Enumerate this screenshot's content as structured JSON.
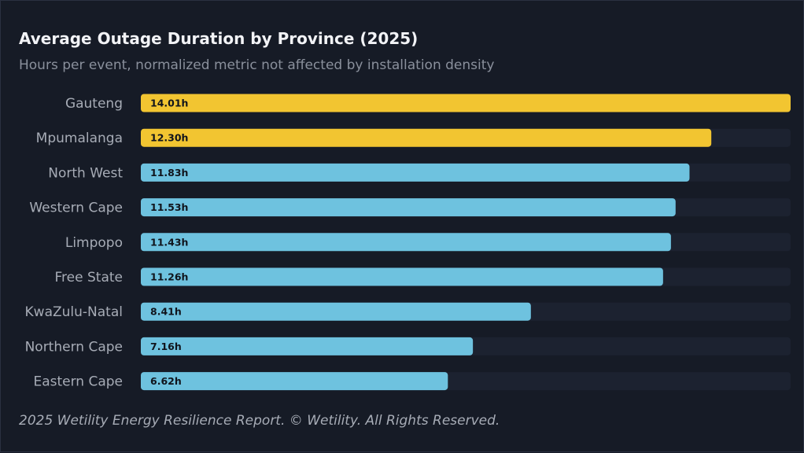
{
  "header": {
    "title": "Average Outage Duration by Province (2025)",
    "subtitle": "Hours per event, normalized metric not affected by installation density"
  },
  "footer": {
    "text": "2025 Wetility Energy Resilience Report. © Wetility. All Rights Reserved."
  },
  "colors": {
    "background": "#161b26",
    "track": "#1c2230",
    "highlight": "#f2c531",
    "default": "#6ec2df",
    "bar_label": "#10141c",
    "category_label": "#a7acb6"
  },
  "chart_data": {
    "type": "bar",
    "orientation": "horizontal",
    "title": "Average Outage Duration by Province (2025)",
    "subtitle": "Hours per event, normalized metric not affected by installation density",
    "xlabel": "",
    "ylabel": "",
    "unit_suffix": "h",
    "xlim": [
      0,
      14.01
    ],
    "grid": false,
    "categories": [
      "Gauteng",
      "Mpumalanga",
      "North West",
      "Western Cape",
      "Limpopo",
      "Free State",
      "KwaZulu-Natal",
      "Northern Cape",
      "Eastern Cape"
    ],
    "values": [
      14.01,
      12.3,
      11.83,
      11.53,
      11.43,
      11.26,
      8.41,
      7.16,
      6.62
    ],
    "value_labels": [
      "14.01h",
      "12.30h",
      "11.83h",
      "11.53h",
      "11.43h",
      "11.26h",
      "8.41h",
      "7.16h",
      "6.62h"
    ],
    "highlighted": [
      true,
      true,
      false,
      false,
      false,
      false,
      false,
      false,
      false
    ]
  }
}
